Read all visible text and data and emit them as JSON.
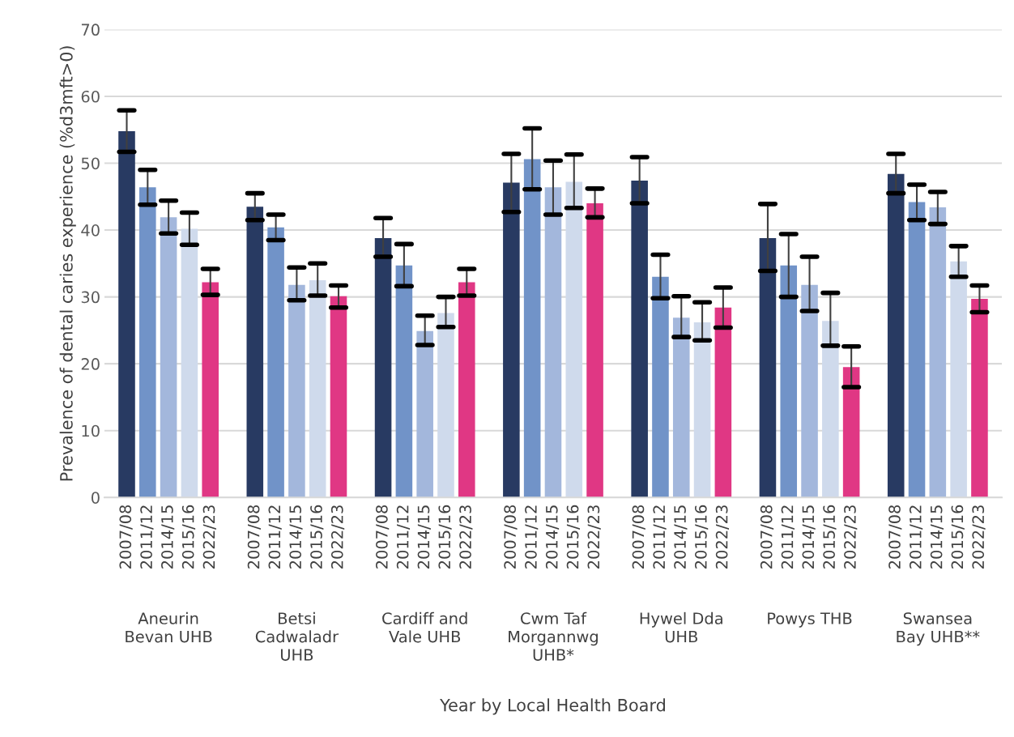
{
  "chart_data": {
    "type": "bar",
    "xlabel": "Year by Local Health Board",
    "ylabel": "Prevalence of dental caries experience (%d3mft>0)",
    "categories": [
      "Aneurin\nBevan UHB",
      "Betsi\nCadwaladr\nUHB",
      "Cardiff and\nVale UHB",
      "Cwm Taf\nMorgannwg\nUHB*",
      "Hywel Dda\nUHB",
      "Powys THB",
      "Swansea\nBay UHB**"
    ],
    "series": [
      {
        "name": "2007/08",
        "color": "#283a62",
        "values": [
          54.8,
          43.5,
          38.8,
          47.1,
          47.4,
          38.8,
          48.4
        ],
        "errors": [
          [
            51.7,
            57.9
          ],
          [
            41.5,
            45.5
          ],
          [
            36.0,
            41.8
          ],
          [
            42.7,
            51.4
          ],
          [
            44.0,
            50.9
          ],
          [
            33.9,
            43.9
          ],
          [
            45.5,
            51.4
          ]
        ]
      },
      {
        "name": "2011/12",
        "color": "#7193c8",
        "values": [
          46.4,
          40.4,
          34.7,
          50.6,
          33.0,
          34.7,
          44.2
        ],
        "errors": [
          [
            43.8,
            49.0
          ],
          [
            38.5,
            42.3
          ],
          [
            31.6,
            37.9
          ],
          [
            46.1,
            55.2
          ],
          [
            29.8,
            36.3
          ],
          [
            30.0,
            39.4
          ],
          [
            41.5,
            46.8
          ]
        ]
      },
      {
        "name": "2014/15",
        "color": "#a3b7dc",
        "values": [
          41.9,
          31.8,
          24.9,
          46.4,
          26.9,
          31.8,
          43.4
        ],
        "errors": [
          [
            39.5,
            44.4
          ],
          [
            29.5,
            34.4
          ],
          [
            22.8,
            27.2
          ],
          [
            42.3,
            50.4
          ],
          [
            24.0,
            30.1
          ],
          [
            27.9,
            36.0
          ],
          [
            40.9,
            45.7
          ]
        ]
      },
      {
        "name": "2015/16",
        "color": "#cfdaec",
        "values": [
          40.2,
          32.5,
          27.6,
          47.2,
          26.2,
          26.4,
          35.3
        ],
        "errors": [
          [
            37.8,
            42.6
          ],
          [
            30.2,
            35.0
          ],
          [
            25.5,
            30.0
          ],
          [
            43.3,
            51.3
          ],
          [
            23.5,
            29.2
          ],
          [
            22.7,
            30.6
          ],
          [
            33.0,
            37.6
          ]
        ]
      },
      {
        "name": "2022/23",
        "color": "#e03784",
        "values": [
          32.2,
          30.1,
          32.2,
          44.0,
          28.4,
          19.5,
          29.7
        ],
        "errors": [
          [
            30.3,
            34.2
          ],
          [
            28.4,
            31.7
          ],
          [
            30.2,
            34.2
          ],
          [
            41.9,
            46.2
          ],
          [
            25.4,
            31.4
          ],
          [
            16.5,
            22.6
          ],
          [
            27.7,
            31.7
          ]
        ]
      }
    ],
    "ylim": [
      0,
      70
    ],
    "yticks": [
      0,
      10,
      20,
      30,
      40,
      50,
      60,
      70
    ],
    "grid": "y",
    "legend": false
  }
}
